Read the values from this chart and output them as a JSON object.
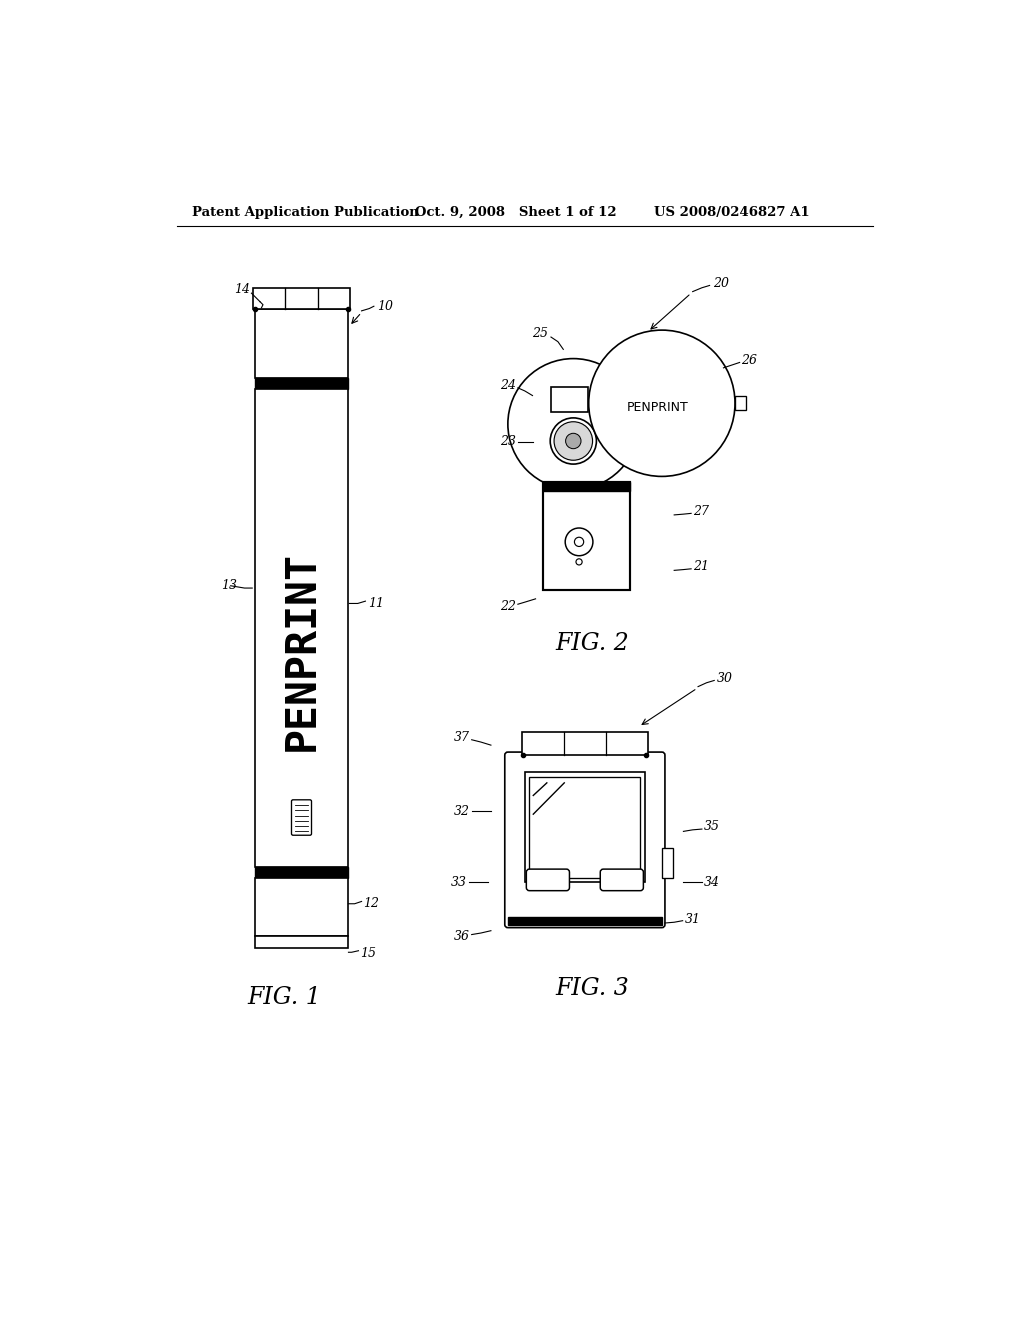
{
  "bg_color": "#ffffff",
  "header_left": "Patent Application Publication",
  "header_mid": "Oct. 9, 2008   Sheet 1 of 12",
  "header_right": "US 2008/0246827 A1",
  "fig1_label": "FIG. 1",
  "fig2_label": "FIG. 2",
  "fig3_label": "FIG. 3",
  "penprint_text": "PENPRINT",
  "penprint_text2": "PENPRINT"
}
